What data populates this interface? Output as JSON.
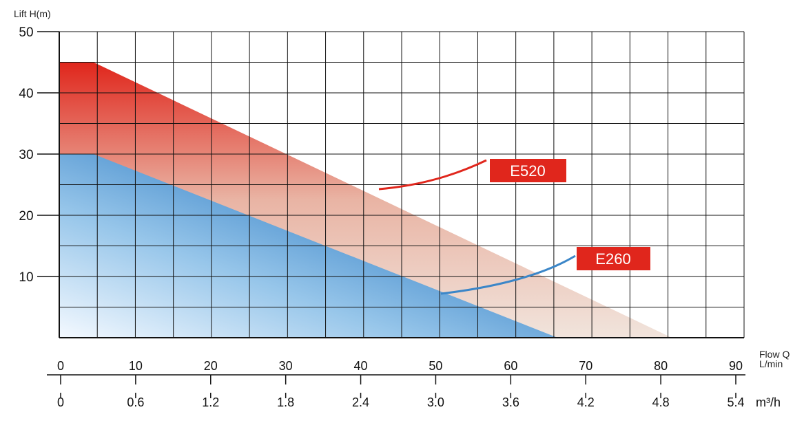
{
  "chart_data": {
    "type": "area",
    "y_axis": {
      "label": "Lift H(m)",
      "range": [
        0,
        50
      ],
      "ticks": [
        10,
        20,
        30,
        40,
        50
      ]
    },
    "x_axis_primary": {
      "label": "Flow Q",
      "unit": "L/min",
      "range": [
        0,
        90
      ],
      "ticks": [
        "0",
        "10",
        "20",
        "30",
        "40",
        "50",
        "60",
        "70",
        "80",
        "90"
      ]
    },
    "x_axis_secondary": {
      "unit": "m³/h",
      "ticks": [
        "0",
        "0.6",
        "1.2",
        "1.8",
        "2.4",
        "3.0",
        "3.6",
        "4.2",
        "4.8",
        "5.4"
      ]
    },
    "grid": true,
    "series": [
      {
        "name": "E520",
        "color": "#e0261c",
        "points": [
          [
            0,
            45
          ],
          [
            4.5,
            45
          ],
          [
            80.5,
            0
          ]
        ]
      },
      {
        "name": "E260",
        "color": "#3b86c8",
        "points": [
          [
            0,
            30
          ],
          [
            4.5,
            30
          ],
          [
            65.5,
            0
          ]
        ]
      }
    ],
    "annotations": [
      {
        "series": "E520",
        "text": "E520",
        "color": "#e0261c"
      },
      {
        "series": "E260",
        "text": "E260",
        "color": "#e0261c"
      }
    ]
  }
}
